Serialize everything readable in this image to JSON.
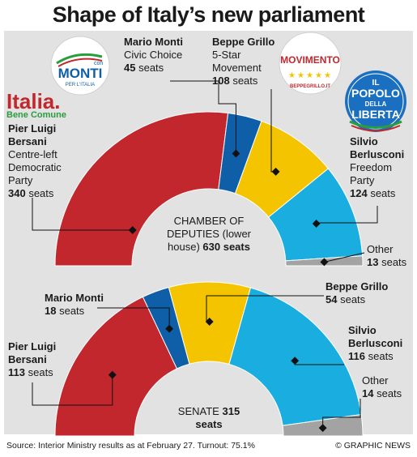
{
  "title": "Shape of Italy’s new parliament",
  "colors": {
    "bersani": "#c1272d",
    "monti": "#0f5fa8",
    "grillo": "#f5c400",
    "berlusconi": "#1aaee0",
    "other": "#a3a3a3",
    "panel": "#e2e2e2"
  },
  "logos": {
    "monti": {
      "small": "con",
      "main": "MONTI",
      "sub": "PER L'ITALIA"
    },
    "grillo": {
      "main": "MOVIMENTO",
      "sub": "BEPPEGRILLO.IT"
    },
    "pdl": {
      "line1": "IL",
      "line2": "POPOLO",
      "line3": "DELLA",
      "line4": "LIBERTA"
    },
    "italia": {
      "main": "Italia.",
      "sub": "Bene Comune"
    }
  },
  "chamber": {
    "center_line1": "CHAMBER",
    "center_line2": "OF DEPUTIES",
    "center_line3": "(lower house)",
    "total": "630 seats",
    "bersani": {
      "name1": "Pier Luigi",
      "name2": "Bersani",
      "party1": "Centre-left",
      "party2": "Democratic",
      "party3": "Party",
      "seats_n": "340",
      "seats_w": "seats"
    },
    "monti": {
      "name": "Mario Monti",
      "party": "Civic Choice",
      "seats_n": "45",
      "seats_w": "seats"
    },
    "grillo": {
      "name": "Beppe Grillo",
      "party1": "5-Star",
      "party2": "Movement",
      "seats_n": "108",
      "seats_w": "seats"
    },
    "berlusconi": {
      "name1": "Silvio",
      "name2": "Berlusconi",
      "party1": "Freedom",
      "party2": "Party",
      "seats_n": "124",
      "seats_w": "seats"
    },
    "other": {
      "name": "Other",
      "seats_n": "13",
      "seats_w": "seats"
    }
  },
  "senate": {
    "center_line1": "SENATE",
    "total": "315 seats",
    "bersani": {
      "name1": "Pier Luigi",
      "name2": "Bersani",
      "seats_n": "113",
      "seats_w": "seats"
    },
    "monti": {
      "name": "Mario Monti",
      "seats_n": "18",
      "seats_w": "seats"
    },
    "grillo": {
      "name": "Beppe Grillo",
      "seats_n": "54",
      "seats_w": "seats"
    },
    "berlusconi": {
      "name1": "Silvio",
      "name2": "Berlusconi",
      "seats_n": "116",
      "seats_w": "seats"
    },
    "other": {
      "name": "Other",
      "seats_n": "14",
      "seats_w": "seats"
    }
  },
  "footer": {
    "source": "Source: Interior Ministry results as at February 27. Turnout: 75.1%",
    "credit": "© GRAPHIC NEWS"
  },
  "chart_data": [
    {
      "type": "pie",
      "title": "CHAMBER OF DEPUTIES (lower house)",
      "total": 630,
      "categories": [
        "Pier Luigi Bersani",
        "Mario Monti",
        "Beppe Grillo",
        "Silvio Berlusconi",
        "Other"
      ],
      "values": [
        340,
        45,
        108,
        124,
        13
      ]
    },
    {
      "type": "pie",
      "title": "SENATE",
      "total": 315,
      "categories": [
        "Pier Luigi Bersani",
        "Mario Monti",
        "Beppe Grillo",
        "Silvio Berlusconi",
        "Other"
      ],
      "values": [
        113,
        18,
        54,
        116,
        14
      ]
    }
  ]
}
